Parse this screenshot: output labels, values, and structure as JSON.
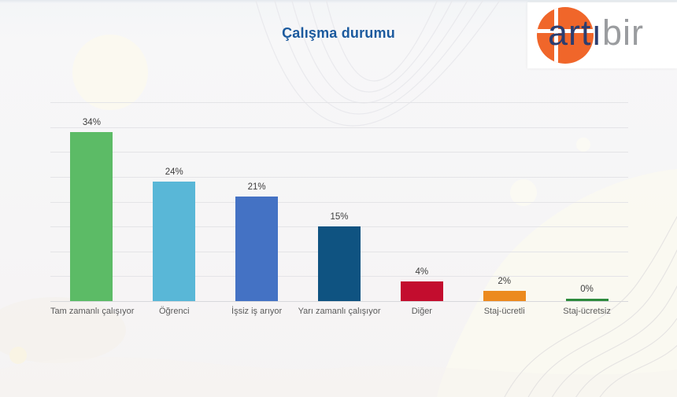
{
  "page": {
    "background": "#f6f5f6"
  },
  "header": {
    "title": "Çalışma durumu",
    "title_color": "#1b5a9e"
  },
  "logo": {
    "text_primary": "artı",
    "text_secondary": "bir",
    "circle_color": "#f0662a",
    "primary_color": "#2c3e70",
    "secondary_color": "#9a9c9f"
  },
  "chart_data": {
    "type": "bar",
    "title": "Çalışma durumu",
    "categories": [
      "Tam zamanlı çalışıyor",
      "Öğrenci",
      "İşsiz iş arıyor",
      "Yarı zamanlı çalışıyor",
      "Diğer",
      "Staj-ücretli",
      "Staj-ücretsiz"
    ],
    "values": [
      34,
      24,
      21,
      15,
      4,
      2,
      0
    ],
    "value_labels": [
      "34%",
      "24%",
      "21%",
      "15%",
      "4%",
      "2%",
      "0%"
    ],
    "bar_colors": [
      "#5cbb66",
      "#59b7d7",
      "#4472c4",
      "#0f5381",
      "#c30d2e",
      "#ec8a1e",
      "#2e8b3d"
    ],
    "xlabel": "",
    "ylabel": "",
    "ylim": [
      0,
      40
    ],
    "gridline_step": 5,
    "grid": true,
    "legend": false,
    "y_tick_labels_visible": false
  }
}
